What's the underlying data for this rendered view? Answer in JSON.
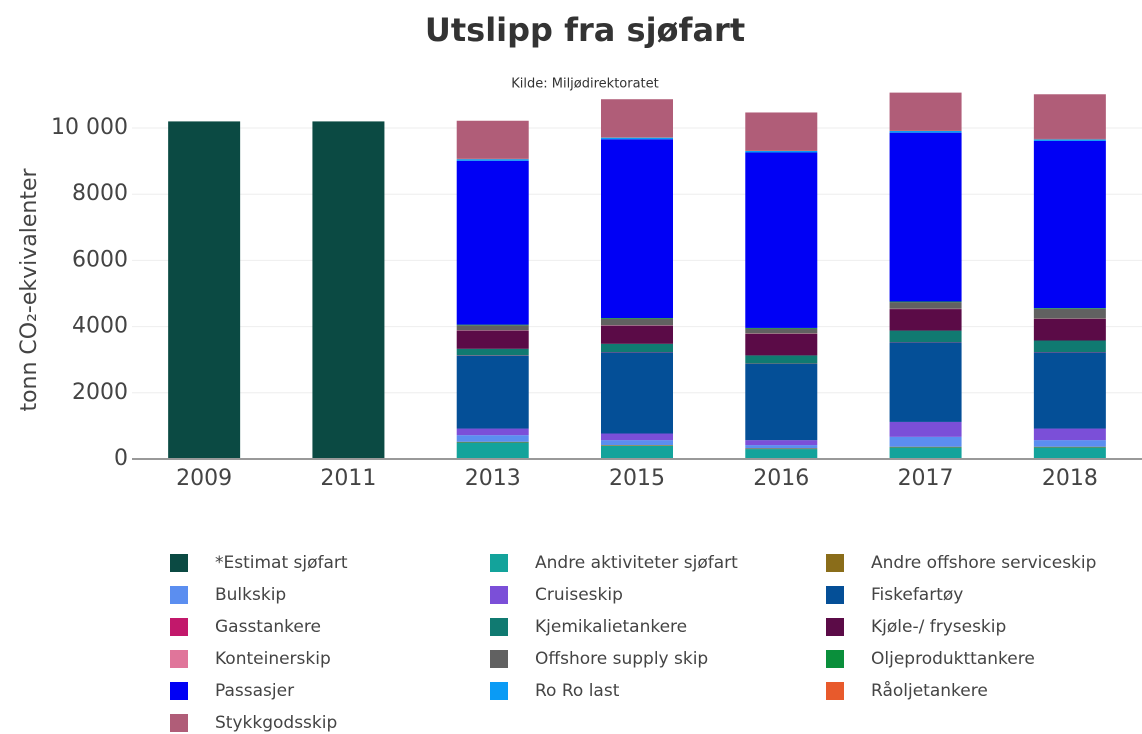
{
  "chart_data": {
    "type": "bar",
    "stacked": true,
    "title": "Utslipp fra sjøfart",
    "subtitle": "Kilde: Miljødirektoratet",
    "y_label": "tonn CO₂-ekvivalenter",
    "categories": [
      "2009",
      "2011",
      "2013",
      "2015",
      "2016",
      "2017",
      "2018"
    ],
    "ylim": [
      0,
      11300
    ],
    "yticks": [
      0,
      2000,
      4000,
      6000,
      8000,
      {
        "value": 10000,
        "label": "10 000"
      }
    ],
    "grid": true,
    "series": [
      {
        "name": "*Estimat sjøfart",
        "color": "#0b4a43",
        "values": [
          10200,
          10200,
          null,
          null,
          null,
          null,
          null
        ]
      },
      {
        "name": "Andre aktiviteter sjøfart",
        "color": "#13a39b",
        "values": [
          null,
          null,
          500,
          400,
          300,
          350,
          350
        ]
      },
      {
        "name": "Andre offshore serviceskip",
        "color": "#8a6d1a",
        "values": [
          null,
          null,
          20,
          20,
          20,
          20,
          20
        ]
      },
      {
        "name": "Bulkskip",
        "color": "#5b8ef0",
        "values": [
          null,
          null,
          200,
          150,
          100,
          300,
          200
        ]
      },
      {
        "name": "Cruiseskip",
        "color": "#7b4fd8",
        "values": [
          null,
          null,
          200,
          200,
          150,
          450,
          350
        ]
      },
      {
        "name": "Fiskefartøy",
        "color": "#044f97",
        "values": [
          null,
          null,
          2200,
          2450,
          2300,
          2400,
          2300
        ]
      },
      {
        "name": "Gasstankere",
        "color": "#c2186b",
        "values": [
          null,
          null,
          10,
          10,
          10,
          10,
          10
        ]
      },
      {
        "name": "Kjemikalietankere",
        "color": "#107a71",
        "values": [
          null,
          null,
          200,
          250,
          250,
          350,
          350
        ]
      },
      {
        "name": "Kjøle-/ fryseskip",
        "color": "#5b0b47",
        "values": [
          null,
          null,
          550,
          550,
          650,
          650,
          650
        ]
      },
      {
        "name": "Konteinerskip",
        "color": "#e0759a",
        "values": [
          null,
          null,
          10,
          10,
          10,
          10,
          10
        ]
      },
      {
        "name": "Offshore supply skip",
        "color": "#616161",
        "values": [
          null,
          null,
          150,
          200,
          150,
          200,
          300
        ]
      },
      {
        "name": "Oljeprodukttankere",
        "color": "#0a8f3b",
        "values": [
          null,
          null,
          20,
          20,
          20,
          20,
          20
        ]
      },
      {
        "name": "Passasjer",
        "color": "#0000f5",
        "values": [
          null,
          null,
          4950,
          5400,
          5300,
          5100,
          5050
        ]
      },
      {
        "name": "Ro Ro last",
        "color": "#0a9bf5",
        "values": [
          null,
          null,
          50,
          50,
          50,
          50,
          50
        ]
      },
      {
        "name": "Råoljetankere",
        "color": "#e85a2c",
        "values": [
          null,
          null,
          10,
          10,
          10,
          10,
          10
        ]
      },
      {
        "name": "Stykkgodsskip",
        "color": "#b05d78",
        "values": [
          null,
          null,
          1150,
          1150,
          1150,
          1150,
          1350
        ]
      }
    ]
  }
}
